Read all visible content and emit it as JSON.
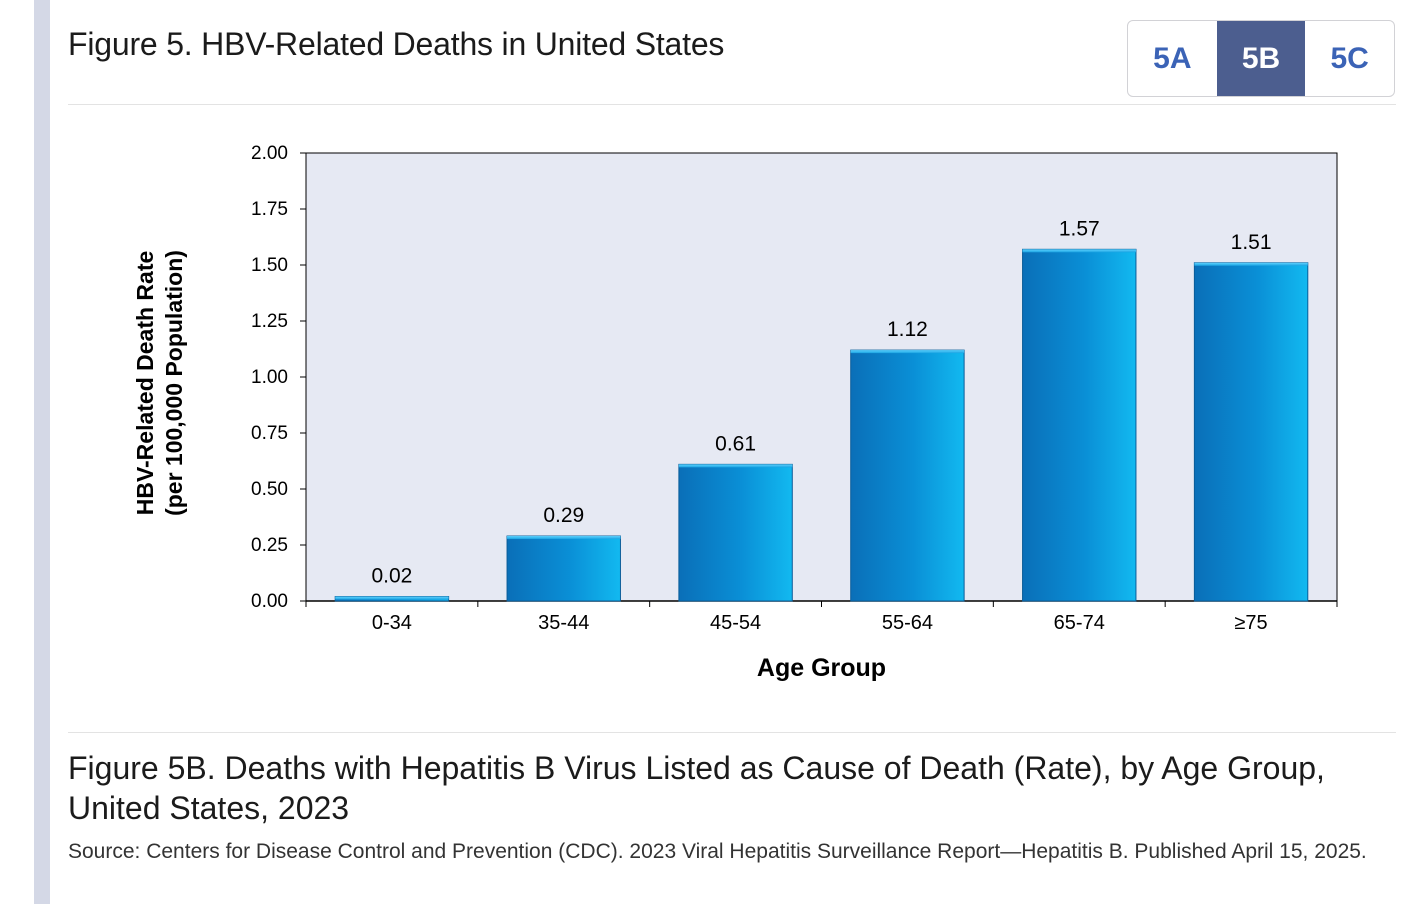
{
  "header": {
    "title": "Figure 5. HBV-Related Deaths in United States"
  },
  "tabs": [
    {
      "label": "5A",
      "active": false
    },
    {
      "label": "5B",
      "active": true
    },
    {
      "label": "5C",
      "active": false
    }
  ],
  "chart_data": {
    "type": "bar",
    "categories": [
      "0-34",
      "35-44",
      "45-54",
      "55-64",
      "65-74",
      "≥75"
    ],
    "values": [
      0.02,
      0.29,
      0.61,
      1.12,
      1.57,
      1.51
    ],
    "value_labels": [
      "0.02",
      "0.29",
      "0.61",
      "1.12",
      "1.57",
      "1.51"
    ],
    "title": "",
    "xlabel": "Age Group",
    "ylabel_line1": "HBV-Related Death Rate",
    "ylabel_line2": "(per 100,000 Population)",
    "ylim": [
      0,
      2.0
    ],
    "yticks": [
      "0.00",
      "0.25",
      "0.50",
      "0.75",
      "1.00",
      "1.25",
      "1.50",
      "1.75",
      "2.00"
    ],
    "grid": false,
    "colors": {
      "plot_background": "#e6e9f3",
      "bar_dark": "#0a6fb8",
      "bar_light": "#0db4ec",
      "axis": "#000000"
    }
  },
  "caption": {
    "title": "Figure 5B. Deaths with Hepatitis B Virus Listed as Cause of Death (Rate), by Age Group, United States, 2023",
    "source": "Source: Centers for Disease Control and Prevention (CDC). 2023 Viral Hepatitis Surveillance Report—Hepatitis B. Published April 15, 2025."
  }
}
